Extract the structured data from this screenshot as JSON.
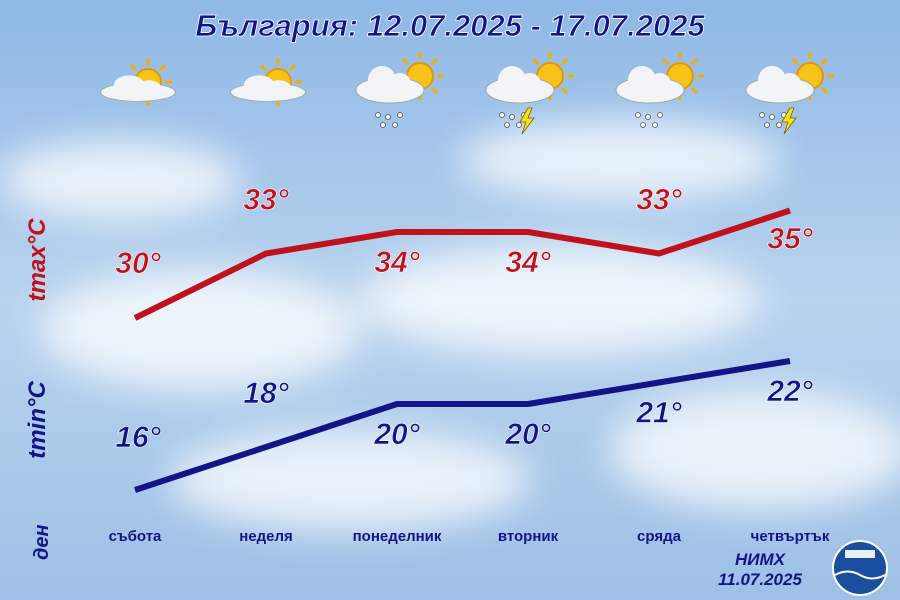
{
  "chart_data": {
    "type": "line",
    "title": "България: 12.07.2025 - 17.07.2025",
    "categories": [
      "събота",
      "неделя",
      "понеделник",
      "вторник",
      "сряда",
      "четвъртък"
    ],
    "category_axis_label": "ден",
    "series": [
      {
        "name": "tmax°C",
        "color": "#c0121c",
        "values": [
          30,
          33,
          34,
          34,
          33,
          35
        ],
        "value_labels": [
          "30°",
          "33°",
          "34°",
          "34°",
          "33°",
          "35°"
        ]
      },
      {
        "name": "tmin°C",
        "color": "#14148a",
        "values": [
          16,
          18,
          20,
          20,
          21,
          22
        ],
        "value_labels": [
          "16°",
          "18°",
          "20°",
          "20°",
          "21°",
          "22°"
        ]
      }
    ],
    "source": "НИМХ",
    "issued": "11.07.2025"
  }
}
